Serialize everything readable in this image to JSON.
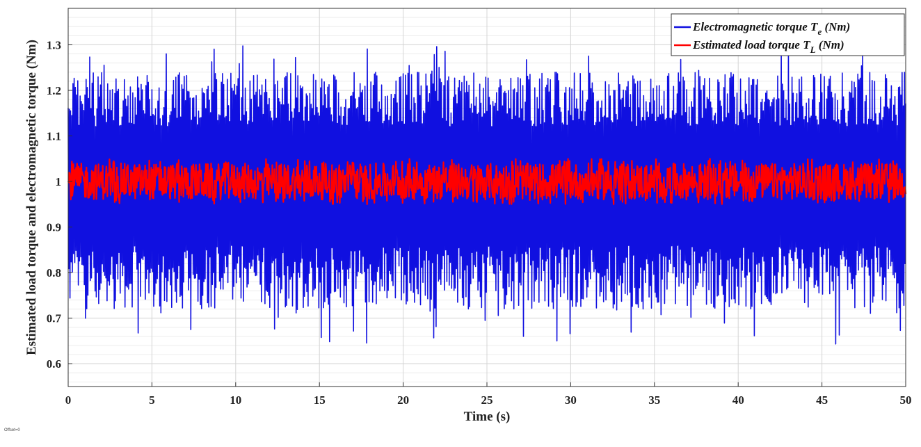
{
  "chart_data": {
    "type": "line",
    "xlabel": "Time (s)",
    "ylabel": "Estimated load torque and electromagnetic torque (Nm)",
    "xlim": [
      0,
      50
    ],
    "ylim": [
      0.55,
      1.38
    ],
    "x_ticks": [
      "0",
      "5",
      "10",
      "15",
      "20",
      "25",
      "30",
      "35",
      "40",
      "45",
      "50"
    ],
    "y_ticks": [
      "0.6",
      "0.7",
      "0.8",
      "0.9",
      "1",
      "1.1",
      "1.2",
      "1.3"
    ],
    "grid": true,
    "minor_grid": true,
    "legend_position": "top-right",
    "series": [
      {
        "name": "Electromagnetic torque",
        "symbol": "T",
        "subscript": "e",
        "unit": "(Nm)",
        "color": "#1010e0",
        "oscillation": "high-frequency",
        "mean": 1.0,
        "min": 0.63,
        "max": 1.3,
        "typical_range": [
          0.72,
          1.24
        ]
      },
      {
        "name": "Estimated load torque",
        "symbol": "T",
        "subscript": "L",
        "unit": "(Nm)",
        "color": "#ff0000",
        "oscillation": "high-frequency",
        "mean": 1.0,
        "min": 0.95,
        "max": 1.05,
        "typical_range": [
          0.96,
          1.04
        ]
      }
    ]
  },
  "footer": {
    "offset_text": "Offset=0"
  }
}
